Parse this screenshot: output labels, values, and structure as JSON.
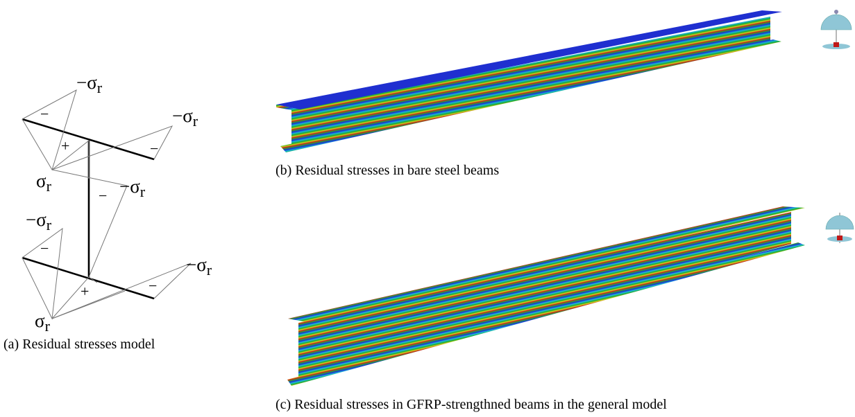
{
  "panels": [
    {
      "caption": "(a) Residual stresses model",
      "labels": [
        {
          "symbol": "−σ",
          "sub": "r"
        },
        {
          "symbol": "−σ",
          "sub": "r"
        },
        {
          "symbol": "σ",
          "sub": "r"
        },
        {
          "symbol": "−σ",
          "sub": "r"
        },
        {
          "symbol": "−σ",
          "sub": "r"
        },
        {
          "symbol": "−σ",
          "sub": "r"
        },
        {
          "symbol": "σ",
          "sub": "r"
        }
      ],
      "signs": [
        "−",
        "+",
        "−",
        "−",
        "−",
        "+",
        "−"
      ]
    },
    {
      "caption": "(b) Residual stresses in bare steel beams"
    },
    {
      "caption": "(c) Residual stresses in GFRP-strengthned beams in the general model"
    }
  ]
}
